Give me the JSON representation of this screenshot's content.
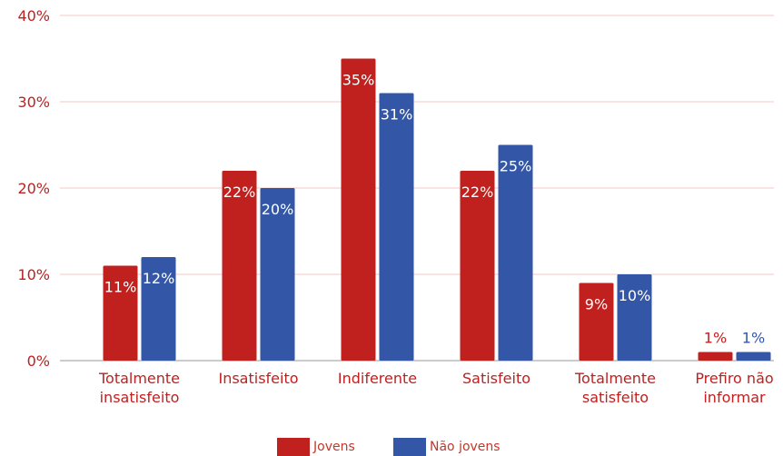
{
  "chart_data": {
    "type": "bar",
    "title": "",
    "xlabel": "",
    "ylabel": "",
    "categories": [
      [
        "Totalmente",
        "insatisfeito"
      ],
      [
        "Insatisfeito"
      ],
      [
        "Indiferente"
      ],
      [
        "Satisfeito"
      ],
      [
        "Totalmente",
        "satisfeito"
      ],
      [
        "Prefiro não",
        "informar"
      ]
    ],
    "series": [
      {
        "name": "Jovens",
        "color": "#c0201e",
        "values": [
          11,
          22,
          35,
          22,
          9,
          1
        ],
        "labels": [
          "11%",
          "22%",
          "35%",
          "22%",
          "9%",
          "1%"
        ]
      },
      {
        "name": "Não jovens",
        "color": "#3356a6",
        "values": [
          12,
          20,
          31,
          25,
          10,
          1
        ],
        "labels": [
          "12%",
          "20%",
          "31%",
          "25%",
          "10%",
          "1%"
        ]
      }
    ],
    "ylim": [
      0,
      40
    ],
    "yticks": [
      0,
      10,
      20,
      30,
      40
    ],
    "ytick_labels": [
      "0%",
      "10%",
      "20%",
      "30%",
      "40%"
    ],
    "grid": true,
    "legend_position": "bottom",
    "colors": {
      "axis_text": "#c0201e",
      "grid": "#f4c9c4",
      "label_inside": "#ffffff"
    }
  },
  "legend": {
    "items": [
      {
        "label": "Jovens",
        "color": "#c0201e"
      },
      {
        "label": "Não jovens",
        "color": "#3356a6"
      }
    ]
  }
}
